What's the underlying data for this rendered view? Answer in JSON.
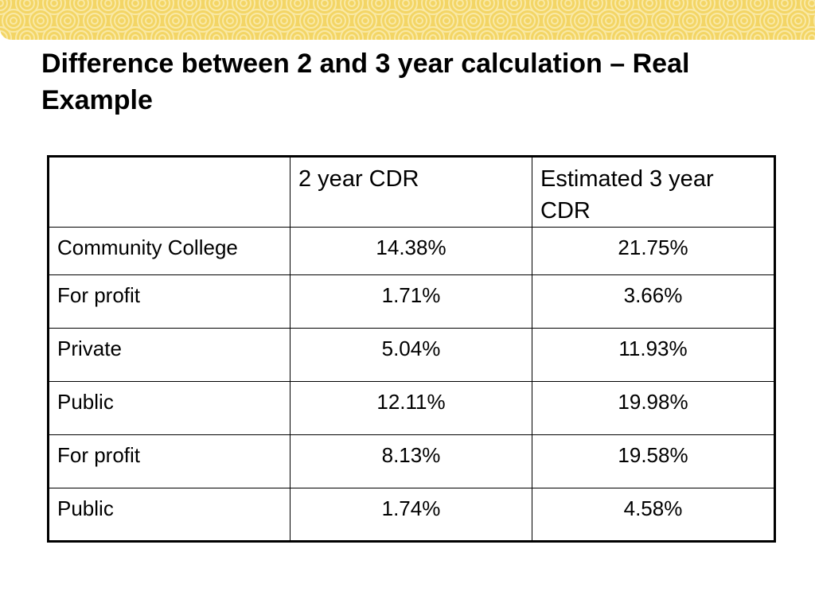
{
  "slide": {
    "title": "Difference between 2 and 3 year calculation – Real Example",
    "banner_color": "#f3d565",
    "banner_swirl_color": "#f9e9a6"
  },
  "table": {
    "headers": [
      "",
      "2 year CDR",
      "Estimated 3 year CDR"
    ],
    "rows": [
      {
        "label": "Community College",
        "two_year": "14.38%",
        "three_year": "21.75%"
      },
      {
        "label": "For profit",
        "two_year": "1.71%",
        "three_year": "3.66%"
      },
      {
        "label": "Private",
        "two_year": "5.04%",
        "three_year": "11.93%"
      },
      {
        "label": "Public",
        "two_year": "12.11%",
        "three_year": "19.98%"
      },
      {
        "label": "For profit",
        "two_year": "8.13%",
        "three_year": "19.58%"
      },
      {
        "label": "Public",
        "two_year": "1.74%",
        "three_year": "4.58%"
      }
    ]
  }
}
